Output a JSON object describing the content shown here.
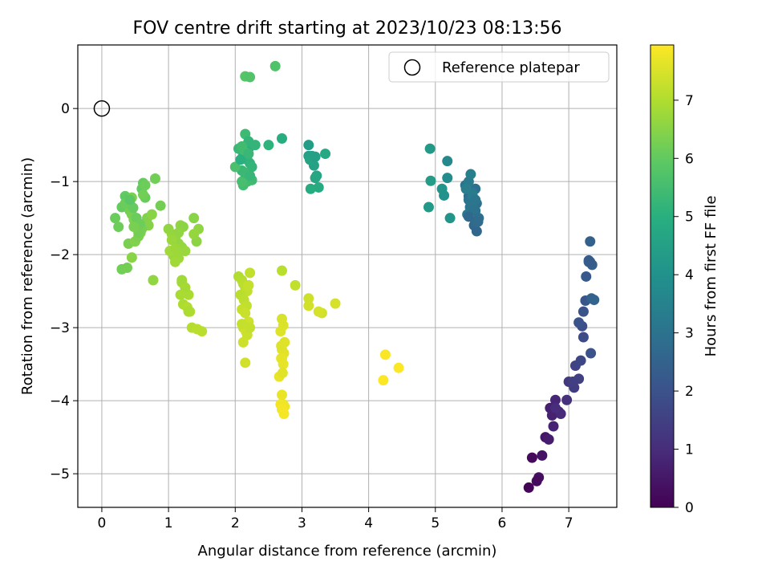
{
  "chart_data": {
    "type": "scatter",
    "title": "FOV centre drift starting at 2023/10/23 08:13:56",
    "xlabel": "Angular distance from reference (arcmin)",
    "ylabel": "Rotation from reference (arcmin)",
    "xlim": [
      -0.36,
      7.72
    ],
    "ylim": [
      -5.46,
      0.87
    ],
    "xticks": [
      0,
      1,
      2,
      3,
      4,
      5,
      6,
      7
    ],
    "yticks": [
      0,
      -1,
      -2,
      -3,
      -4,
      -5
    ],
    "grid": true,
    "colorbar": {
      "label": "Hours from first FF file",
      "min": 0,
      "max": 7.95,
      "ticks": [
        0,
        1,
        2,
        3,
        4,
        5,
        6,
        7
      ],
      "colormap": "viridis"
    },
    "legend": {
      "position": "top-right",
      "entries": [
        {
          "label": "Reference platepar",
          "marker": "open-circle",
          "x": 0,
          "y": 0
        }
      ]
    },
    "series": [
      {
        "x": [
          6.4,
          6.45,
          6.55,
          6.6,
          6.52,
          6.65,
          6.7,
          6.72,
          6.77,
          6.8,
          6.85,
          6.75,
          6.88,
          6.8,
          6.97,
          7.0,
          7.08,
          7.15,
          7.1,
          7.18,
          7.22,
          7.06,
          7.2,
          7.15,
          7.22,
          7.25,
          7.26,
          7.3,
          7.35,
          7.3,
          7.32,
          7.34,
          7.38,
          7.33,
          7.32
        ],
        "y": [
          -5.19,
          -4.78,
          -5.05,
          -4.75,
          -5.1,
          -4.5,
          -4.53,
          -4.1,
          -4.35,
          -3.99,
          -4.15,
          -4.2,
          -4.18,
          -4.1,
          -3.99,
          -3.74,
          -3.82,
          -3.7,
          -3.52,
          -3.45,
          -3.13,
          -3.74,
          -2.98,
          -2.93,
          -2.78,
          -2.63,
          -2.3,
          -2.08,
          -2.14,
          -2.1,
          -1.82,
          -2.6,
          -2.62,
          -3.35,
          -2.1
        ],
        "t": [
          0.1,
          0.2,
          0.3,
          0.4,
          0.25,
          0.5,
          0.6,
          0.7,
          0.8,
          0.85,
          0.9,
          0.75,
          0.95,
          1.0,
          1.1,
          1.3,
          1.4,
          1.5,
          1.6,
          1.7,
          1.8,
          1.45,
          1.9,
          2.0,
          2.05,
          2.1,
          2.2,
          2.3,
          2.4,
          2.35,
          2.45,
          2.5,
          2.55,
          2.0,
          2.3
        ]
      },
      {
        "x": [
          5.5,
          5.55,
          5.6,
          5.45,
          5.5,
          5.6,
          5.65,
          5.58,
          5.62,
          5.52,
          5.48,
          5.55,
          5.6,
          5.5,
          5.56,
          5.62,
          5.46,
          5.58,
          5.5,
          5.64,
          5.53,
          5.6,
          4.92,
          4.93,
          5.1,
          5.13,
          5.18,
          5.18,
          5.22,
          4.9
        ],
        "y": [
          -1.2,
          -1.3,
          -1.1,
          -1.05,
          -1.25,
          -1.4,
          -1.5,
          -1.6,
          -1.68,
          -1.35,
          -1.45,
          -1.15,
          -1.55,
          -1.0,
          -1.2,
          -1.3,
          -1.1,
          -1.38,
          -1.48,
          -1.55,
          -0.9,
          -1.25,
          -0.55,
          -0.99,
          -1.1,
          -1.19,
          -0.72,
          -0.95,
          -1.5,
          -1.35
        ],
        "t": [
          2.7,
          2.8,
          2.9,
          3.0,
          3.05,
          2.95,
          2.85,
          2.6,
          2.65,
          3.1,
          3.15,
          3.2,
          2.75,
          3.25,
          3.3,
          2.9,
          3.35,
          3.0,
          2.7,
          2.8,
          3.4,
          3.1,
          4.3,
          4.35,
          4.1,
          4.0,
          3.7,
          3.8,
          4.1,
          4.3
        ]
      },
      {
        "x": [
          3.1,
          3.15,
          3.1,
          3.18,
          3.12,
          3.22,
          3.2,
          3.35,
          3.25,
          3.13,
          3.2
        ],
        "y": [
          -0.5,
          -0.65,
          -0.65,
          -0.78,
          -0.7,
          -0.92,
          -0.95,
          -0.62,
          -1.08,
          -1.1,
          -0.66
        ],
        "t": [
          4.4,
          4.45,
          4.5,
          4.55,
          4.6,
          4.65,
          4.7,
          4.75,
          4.8,
          4.85,
          4.5
        ]
      },
      {
        "x": [
          2.1,
          2.15,
          2.2,
          2.12,
          2.18,
          2.22,
          2.25,
          2.1,
          2.15,
          2.2,
          2.25,
          2.18,
          2.12,
          2.3,
          2.5,
          2.7,
          2.0,
          2.1,
          2.05,
          2.15,
          2.2,
          2.15,
          2.08,
          2.15,
          2.22,
          2.6,
          2.15,
          2.22,
          2.1,
          2.2
        ],
        "y": [
          -0.52,
          -0.58,
          -0.55,
          -0.62,
          -0.7,
          -0.75,
          -0.8,
          -0.85,
          -0.9,
          -0.95,
          -0.98,
          -1.0,
          -1.05,
          -0.5,
          -0.5,
          -0.41,
          -0.8,
          -1.0,
          -0.55,
          -0.35,
          -0.45,
          -0.6,
          -0.7,
          -0.88,
          -0.92,
          0.58,
          0.44,
          0.43,
          -0.52,
          -0.62
        ],
        "t": [
          4.9,
          4.95,
          5.0,
          5.05,
          5.1,
          5.15,
          5.2,
          5.25,
          5.3,
          5.35,
          5.4,
          5.45,
          5.5,
          5.2,
          5.1,
          4.95,
          5.6,
          5.55,
          5.3,
          5.4,
          5.2,
          5.5,
          5.0,
          5.35,
          5.25,
          5.7,
          5.8,
          5.75,
          5.45,
          5.3
        ]
      },
      {
        "x": [
          0.2,
          0.25,
          0.3,
          0.35,
          0.38,
          0.4,
          0.42,
          0.45,
          0.48,
          0.5,
          0.52,
          0.55,
          0.58,
          0.6,
          0.62,
          0.65,
          0.68,
          0.7,
          0.75,
          0.8,
          0.88,
          0.4,
          0.45,
          0.5,
          0.55,
          0.6,
          0.3,
          0.38,
          0.42,
          0.47,
          0.52,
          0.57,
          0.62,
          0.45,
          0.35,
          0.65,
          0.77,
          0.55,
          0.48,
          0.42
        ],
        "y": [
          -1.5,
          -1.62,
          -1.35,
          -1.2,
          -1.23,
          -1.28,
          -1.4,
          -1.45,
          -1.52,
          -1.55,
          -1.6,
          -1.65,
          -1.7,
          -1.1,
          -1.02,
          -1.22,
          -1.5,
          -1.6,
          -1.45,
          -0.96,
          -1.33,
          -1.85,
          -2.04,
          -1.82,
          -1.75,
          -1.65,
          -2.2,
          -2.18,
          -1.3,
          -1.36,
          -1.5,
          -1.58,
          -1.18,
          -1.22,
          -1.3,
          -1.05,
          -2.35,
          -1.7,
          -1.62,
          -1.25
        ],
        "t": [
          6.1,
          6.15,
          6.05,
          6.0,
          5.95,
          6.2,
          6.25,
          6.3,
          6.35,
          6.4,
          6.45,
          6.3,
          6.35,
          6.0,
          6.05,
          6.1,
          6.4,
          6.45,
          6.5,
          6.2,
          6.25,
          6.3,
          6.5,
          6.4,
          6.35,
          6.3,
          6.2,
          6.25,
          6.0,
          6.05,
          6.1,
          6.15,
          6.2,
          6.35,
          6.1,
          6.15,
          6.6,
          6.25,
          6.3,
          5.9
        ]
      },
      {
        "x": [
          1.0,
          1.05,
          1.1,
          1.15,
          1.2,
          1.25,
          1.12,
          1.18,
          1.22,
          1.08,
          1.02,
          1.15,
          1.1,
          1.2,
          1.3,
          1.38,
          1.42,
          1.45,
          1.38,
          1.2,
          1.25,
          1.18,
          1.22,
          1.28,
          1.32,
          1.3,
          1.35,
          1.43,
          1.5,
          1.15,
          1.05,
          1.1
        ],
        "y": [
          -1.65,
          -1.72,
          -1.78,
          -1.85,
          -1.9,
          -1.95,
          -2.0,
          -1.6,
          -1.62,
          -2.02,
          -1.95,
          -2.05,
          -2.1,
          -2.38,
          -2.55,
          -1.5,
          -1.82,
          -1.65,
          -1.72,
          -2.35,
          -2.45,
          -2.55,
          -2.68,
          -2.72,
          -2.78,
          -2.78,
          -3.0,
          -3.02,
          -3.05,
          -1.7,
          -1.8,
          -1.92
        ],
        "t": [
          6.6,
          6.65,
          6.7,
          6.6,
          6.65,
          6.7,
          6.75,
          6.6,
          6.55,
          6.7,
          6.8,
          6.75,
          6.8,
          6.85,
          6.9,
          6.5,
          6.55,
          6.6,
          6.65,
          6.8,
          6.85,
          6.9,
          6.95,
          7.0,
          7.0,
          6.95,
          7.05,
          7.1,
          7.1,
          6.6,
          6.7,
          6.75
        ]
      },
      {
        "x": [
          2.05,
          2.1,
          2.12,
          2.15,
          2.18,
          2.2,
          2.08,
          2.13,
          2.17,
          2.1,
          2.15,
          2.2,
          2.12,
          2.16,
          2.22,
          2.1,
          2.18,
          2.12,
          2.15,
          2.22,
          2.7,
          2.9,
          3.1,
          3.1,
          3.3,
          3.5,
          3.25
        ],
        "y": [
          -2.3,
          -2.35,
          -2.4,
          -2.45,
          -2.5,
          -2.42,
          -2.55,
          -2.62,
          -2.7,
          -2.75,
          -2.8,
          -2.92,
          -3.0,
          -3.05,
          -2.25,
          -2.95,
          -3.1,
          -3.2,
          -3.48,
          -3.0,
          -2.22,
          -2.42,
          -2.6,
          -2.7,
          -2.8,
          -2.67,
          -2.78
        ],
        "t": [
          7.0,
          7.05,
          7.1,
          7.15,
          7.2,
          7.25,
          7.1,
          7.15,
          7.2,
          7.25,
          7.3,
          7.35,
          7.3,
          7.35,
          7.2,
          7.25,
          7.3,
          7.35,
          7.4,
          7.25,
          7.1,
          7.2,
          7.35,
          7.4,
          7.4,
          7.45,
          7.45
        ]
      },
      {
        "x": [
          2.7,
          2.72,
          2.68,
          2.74,
          2.7,
          2.73,
          2.69,
          2.72,
          2.66,
          2.7,
          2.72,
          2.74,
          2.68,
          2.7,
          2.73,
          2.71,
          2.69,
          2.7,
          4.25,
          4.22,
          4.45
        ],
        "y": [
          -2.88,
          -2.97,
          -3.05,
          -3.2,
          -3.3,
          -3.35,
          -3.42,
          -3.5,
          -3.67,
          -3.92,
          -4.05,
          -4.08,
          -4.05,
          -4.12,
          -4.18,
          -3.62,
          -3.25,
          -3.42,
          -3.37,
          -3.72,
          -3.55
        ],
        "t": [
          7.5,
          7.52,
          7.55,
          7.57,
          7.6,
          7.62,
          7.65,
          7.67,
          7.7,
          7.72,
          7.75,
          7.77,
          7.8,
          7.82,
          7.85,
          7.6,
          7.55,
          7.65,
          7.9,
          7.92,
          7.93
        ]
      }
    ]
  }
}
